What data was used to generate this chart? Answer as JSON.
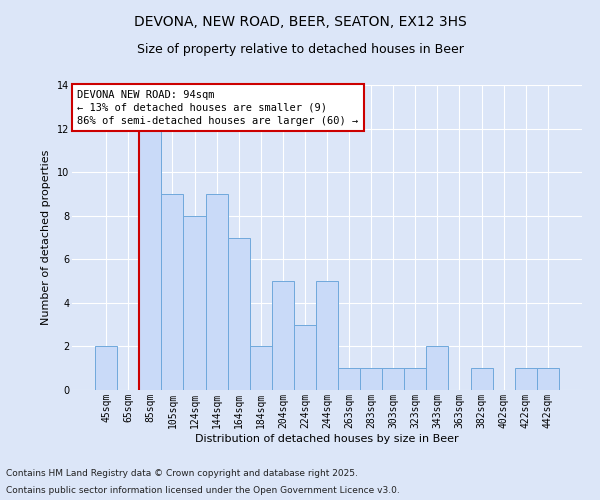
{
  "title1": "DEVONA, NEW ROAD, BEER, SEATON, EX12 3HS",
  "title2": "Size of property relative to detached houses in Beer",
  "xlabel": "Distribution of detached houses by size in Beer",
  "ylabel": "Number of detached properties",
  "categories": [
    "45sqm",
    "65sqm",
    "85sqm",
    "105sqm",
    "124sqm",
    "144sqm",
    "164sqm",
    "184sqm",
    "204sqm",
    "224sqm",
    "244sqm",
    "263sqm",
    "283sqm",
    "303sqm",
    "323sqm",
    "343sqm",
    "363sqm",
    "382sqm",
    "402sqm",
    "422sqm",
    "442sqm"
  ],
  "values": [
    2,
    0,
    12,
    9,
    8,
    9,
    7,
    2,
    5,
    3,
    5,
    1,
    1,
    1,
    1,
    2,
    0,
    1,
    0,
    1,
    1
  ],
  "bar_color": "#c9daf8",
  "bar_edge_color": "#6fa8dc",
  "red_line_index": 2,
  "annotation_title": "DEVONA NEW ROAD: 94sqm",
  "annotation_line1": "← 13% of detached houses are smaller (9)",
  "annotation_line2": "86% of semi-detached houses are larger (60) →",
  "annotation_box_color": "#ffffff",
  "annotation_box_edge_color": "#cc0000",
  "red_line_color": "#cc0000",
  "ylim": [
    0,
    14
  ],
  "yticks": [
    0,
    2,
    4,
    6,
    8,
    10,
    12,
    14
  ],
  "footnote1": "Contains HM Land Registry data © Crown copyright and database right 2025.",
  "footnote2": "Contains public sector information licensed under the Open Government Licence v3.0.",
  "background_color": "#dce6f8",
  "grid_color": "#ffffff",
  "title_fontsize": 10,
  "subtitle_fontsize": 9,
  "axis_label_fontsize": 8,
  "tick_fontsize": 7,
  "annotation_fontsize": 7.5,
  "footnote_fontsize": 6.5,
  "ylabel_fontsize": 8
}
